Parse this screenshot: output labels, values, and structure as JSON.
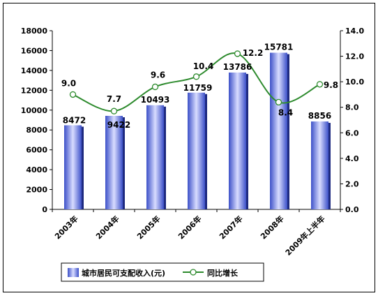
{
  "chart_data": {
    "type": "bar+line",
    "categories": [
      "2003年",
      "2004年",
      "2005年",
      "2006年",
      "2007年",
      "2008年",
      "2009年上半年"
    ],
    "series": [
      {
        "name": "城市居民可支配收入(元)",
        "type": "bar",
        "axis": "left",
        "values": [
          8472,
          9422,
          10493,
          11759,
          13786,
          15781,
          8856
        ],
        "labels": [
          "8472",
          "9422",
          "10493",
          "11759",
          "13786",
          "15781",
          "8856"
        ]
      },
      {
        "name": "同比增长",
        "type": "line",
        "axis": "right",
        "values": [
          9.0,
          7.7,
          9.6,
          10.4,
          12.2,
          8.4,
          9.8
        ],
        "labels": [
          "9.0",
          "7.7",
          "9.6",
          "10.4",
          "12.2",
          "8.4",
          "9.8"
        ]
      }
    ],
    "left_axis": {
      "ylim": [
        0,
        18000
      ],
      "ticks": [
        "0",
        "2000",
        "4000",
        "6000",
        "8000",
        "10000",
        "12000",
        "14000",
        "16000",
        "18000"
      ]
    },
    "right_axis": {
      "ylim": [
        0,
        14
      ],
      "ticks": [
        "0.0",
        "2.0",
        "4.0",
        "6.0",
        "8.0",
        "10.0",
        "12.0",
        "14.0"
      ]
    },
    "grid": false,
    "legend_position": "bottom",
    "colors": {
      "bar": "#7b8ff0",
      "line": "#2e8b2e",
      "marker_fill": "#ffffff"
    }
  }
}
